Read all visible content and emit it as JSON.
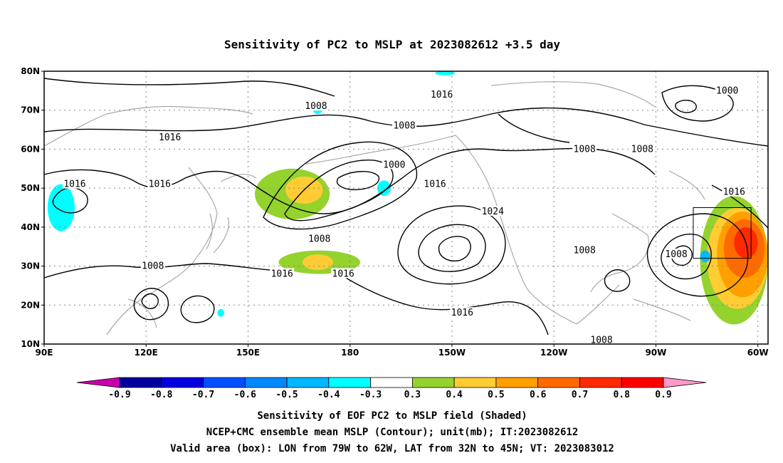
{
  "title": "Sensitivity of PC2 to MSLP at 2023082612 +3.5 day",
  "map": {
    "lon_range": [
      90,
      303
    ],
    "lat_range": [
      10,
      80
    ],
    "lat_ticks": [
      {
        "lat": 80,
        "label": "80N"
      },
      {
        "lat": 70,
        "label": "70N"
      },
      {
        "lat": 60,
        "label": "60N"
      },
      {
        "lat": 50,
        "label": "50N"
      },
      {
        "lat": 40,
        "label": "40N"
      },
      {
        "lat": 30,
        "label": "30N"
      },
      {
        "lat": 20,
        "label": "20N"
      },
      {
        "lat": 10,
        "label": "10N"
      }
    ],
    "lon_ticks": [
      {
        "lon": 90,
        "label": "90E"
      },
      {
        "lon": 120,
        "label": "120E"
      },
      {
        "lon": 150,
        "label": "150E"
      },
      {
        "lon": 180,
        "label": "180"
      },
      {
        "lon": 210,
        "label": "150W"
      },
      {
        "lon": 240,
        "label": "120W"
      },
      {
        "lon": 270,
        "label": "90W"
      },
      {
        "lon": 300,
        "label": "60W"
      }
    ],
    "grid": "dotted",
    "valid_box": {
      "lon_min": 281,
      "lon_max": 298,
      "lat_min": 32,
      "lat_max": 45
    }
  },
  "contour_labels": [
    {
      "text": "1008",
      "lon": 170,
      "lat": 71
    },
    {
      "text": "1016",
      "lon": 207,
      "lat": 74
    },
    {
      "text": "1000",
      "lon": 291,
      "lat": 75
    },
    {
      "text": "1016",
      "lon": 127,
      "lat": 63
    },
    {
      "text": "1008",
      "lon": 196,
      "lat": 66
    },
    {
      "text": "1008",
      "lon": 249,
      "lat": 60
    },
    {
      "text": "1008",
      "lon": 266,
      "lat": 60
    },
    {
      "text": "1000",
      "lon": 193,
      "lat": 56
    },
    {
      "text": "1016",
      "lon": 99,
      "lat": 51
    },
    {
      "text": "1016",
      "lon": 124,
      "lat": 51
    },
    {
      "text": "1016",
      "lon": 205,
      "lat": 51
    },
    {
      "text": "1016",
      "lon": 293,
      "lat": 49
    },
    {
      "text": "1024",
      "lon": 222,
      "lat": 44
    },
    {
      "text": "1008",
      "lon": 171,
      "lat": 37
    },
    {
      "text": "1008",
      "lon": 249,
      "lat": 34
    },
    {
      "text": "1008",
      "lon": 276,
      "lat": 33
    },
    {
      "text": "1008",
      "lon": 122,
      "lat": 30
    },
    {
      "text": "1016",
      "lon": 160,
      "lat": 28
    },
    {
      "text": "1016",
      "lon": 178,
      "lat": 28
    },
    {
      "text": "1016",
      "lon": 213,
      "lat": 18
    },
    {
      "text": "1008",
      "lon": 254,
      "lat": 11
    }
  ],
  "shaded_regions": [
    {
      "level": 0.3,
      "lon": [
        152,
        174
      ],
      "lat": [
        42,
        55
      ]
    },
    {
      "level": 0.4,
      "lon": [
        161,
        172
      ],
      "lat": [
        46,
        53
      ]
    },
    {
      "level": 0.3,
      "lon": [
        159,
        183
      ],
      "lat": [
        28,
        34
      ]
    },
    {
      "level": 0.4,
      "lon": [
        166,
        175
      ],
      "lat": [
        29,
        33
      ]
    },
    {
      "level": 0.3,
      "lon": [
        283,
        303
      ],
      "lat": [
        15,
        48
      ]
    },
    {
      "level": 0.4,
      "lon": [
        285,
        303
      ],
      "lat": [
        19,
        45
      ]
    },
    {
      "level": 0.5,
      "lon": [
        288,
        303
      ],
      "lat": [
        22,
        44
      ]
    },
    {
      "level": 0.6,
      "lon": [
        290,
        302
      ],
      "lat": [
        27,
        42
      ]
    },
    {
      "level": 0.7,
      "lon": [
        293,
        300
      ],
      "lat": [
        32,
        40
      ]
    },
    {
      "level": -0.4,
      "lon": [
        91,
        99
      ],
      "lat": [
        39,
        51
      ]
    },
    {
      "level": -0.4,
      "lon": [
        169,
        172
      ],
      "lat": [
        69,
        72
      ]
    },
    {
      "level": -0.4,
      "lon": [
        188,
        192
      ],
      "lat": [
        48,
        52
      ]
    },
    {
      "level": -0.4,
      "lon": [
        205,
        211
      ],
      "lat": [
        79,
        80
      ]
    },
    {
      "level": -0.4,
      "lon": [
        141,
        143
      ],
      "lat": [
        17,
        19
      ]
    },
    {
      "level": -0.5,
      "lon": [
        283,
        286
      ],
      "lat": [
        31,
        34
      ]
    }
  ],
  "colorbar": {
    "labels": [
      "-0.9",
      "-0.8",
      "-0.7",
      "-0.6",
      "-0.5",
      "-0.4",
      "-0.3",
      "0.3",
      "0.4",
      "0.5",
      "0.6",
      "0.7",
      "0.8",
      "0.9"
    ],
    "colors": [
      "#0000a0",
      "#0000e0",
      "#0050ff",
      "#0088ff",
      "#00b8ff",
      "#00ffff",
      "#ffffff",
      "#94d22e",
      "#ffcc33",
      "#ffa000",
      "#ff6a00",
      "#ff2a00",
      "#ff0000"
    ],
    "low_color": "#cc00aa",
    "high_color": "#ff99cc"
  },
  "footer": {
    "line1": "Sensitivity of EOF PC2 to MSLP field (Shaded)",
    "line2": "NCEP+CMC ensemble mean MSLP (Contour); unit(mb); IT:2023082612",
    "line3": "Valid area (box): LON from 79W to 62W, LAT from 32N to 45N; VT: 2023083012"
  }
}
